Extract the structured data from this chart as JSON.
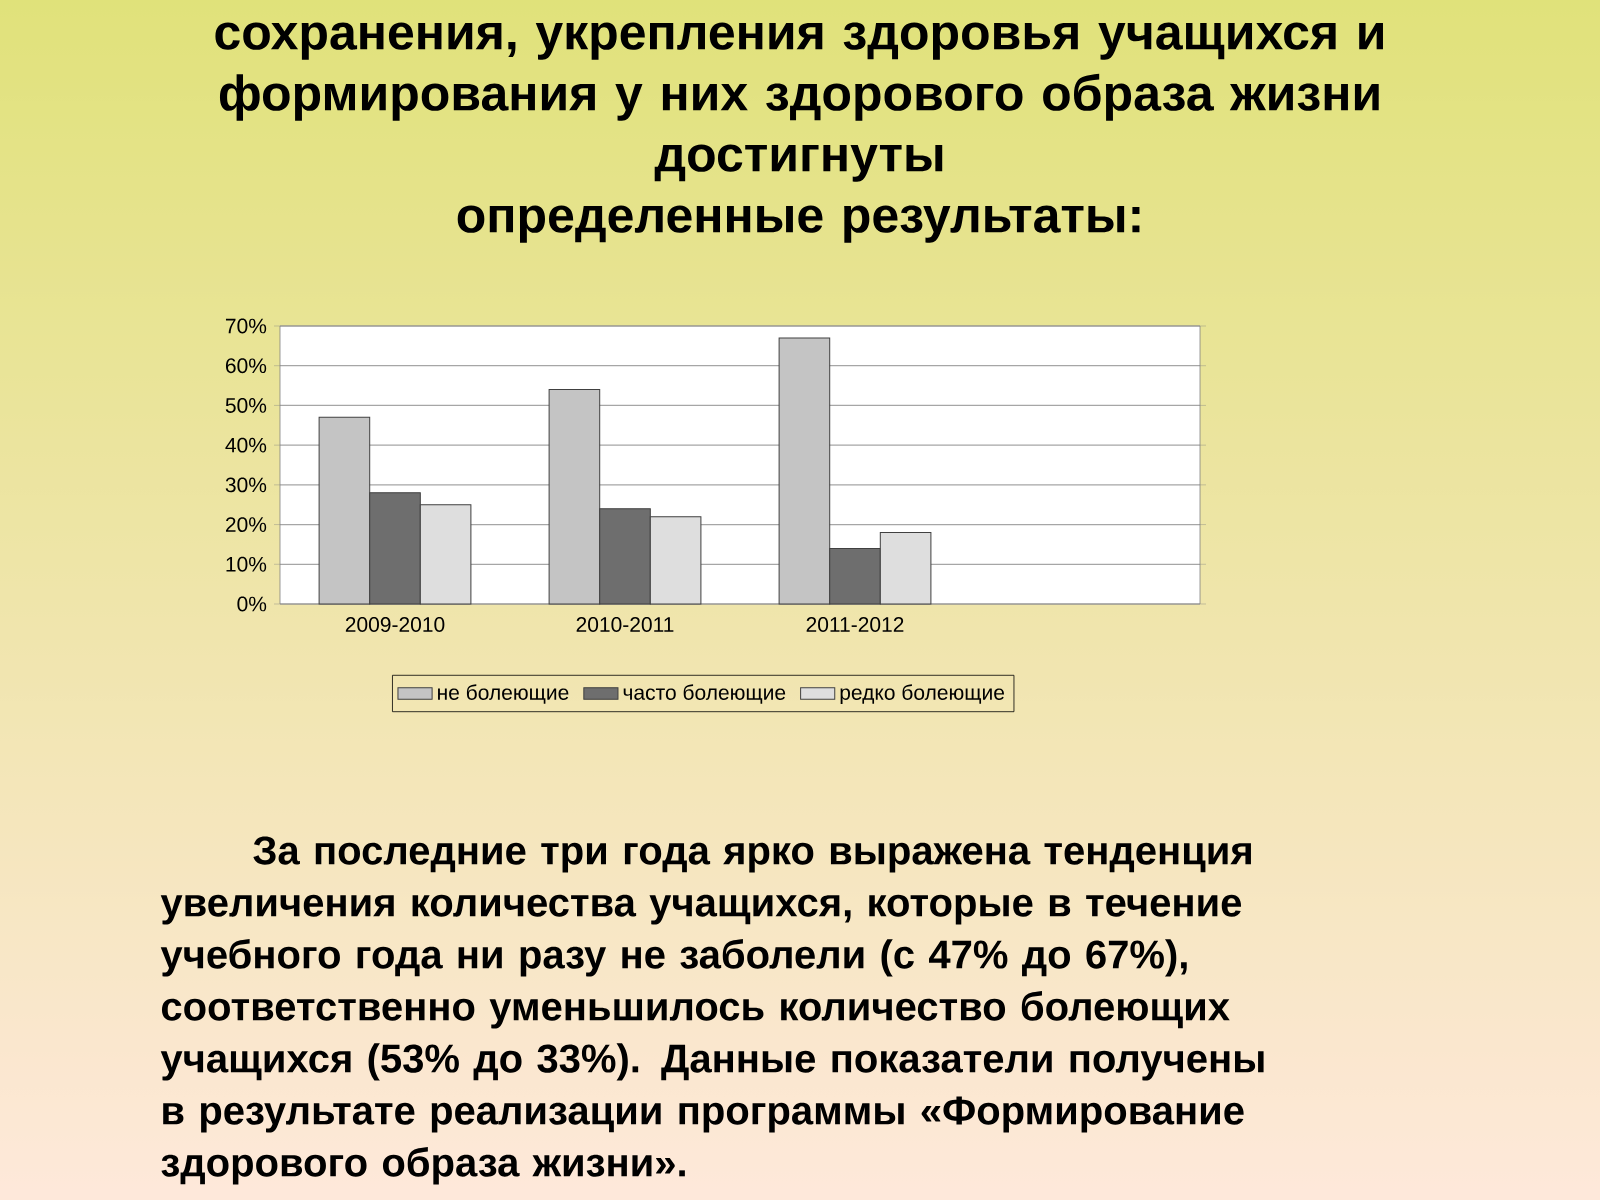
{
  "chart_data": {
    "type": "bar",
    "title": "сохранения, укрепления здоровья учащихся и\nформирования у них здорового образа жизни\nдостигнуты\nопределенные результаты:",
    "categories": [
      "2009-2010",
      "2010-2011",
      "2011-2012",
      null
    ],
    "series": [
      {
        "name": "не болеющие",
        "color": "#c4c4c4",
        "values": [
          47,
          54,
          67,
          null
        ]
      },
      {
        "name": "часто болеющие",
        "color": "#6e6e6e",
        "values": [
          28,
          24,
          14,
          null
        ]
      },
      {
        "name": "редко болеющие",
        "color": "#dedede",
        "values": [
          25,
          22,
          18,
          null
        ]
      }
    ],
    "ylim": [
      0,
      70
    ],
    "yticks": [
      {
        "value": 0,
        "label": "0%"
      },
      {
        "value": 10,
        "label": "10%"
      },
      {
        "value": 20,
        "label": "20%"
      },
      {
        "value": 30,
        "label": "30%"
      },
      {
        "value": 40,
        "label": "40%"
      },
      {
        "value": 50,
        "label": "50%"
      },
      {
        "value": 60,
        "label": "60%"
      },
      {
        "value": 70,
        "label": "70%"
      }
    ],
    "grid": "y",
    "legend": "bottom",
    "annotations": [
      "За последние три года ярко выражена тенденция увеличения количества учащихся, которые в течение учебного года ни разу не заболели (с 47% до 67%), соответственно уменьшилось количество болеющих учащихся (53% до 33%). Данные показатели получены в результате реализации программы «Формирование здорового образа жизни»."
    ]
  }
}
